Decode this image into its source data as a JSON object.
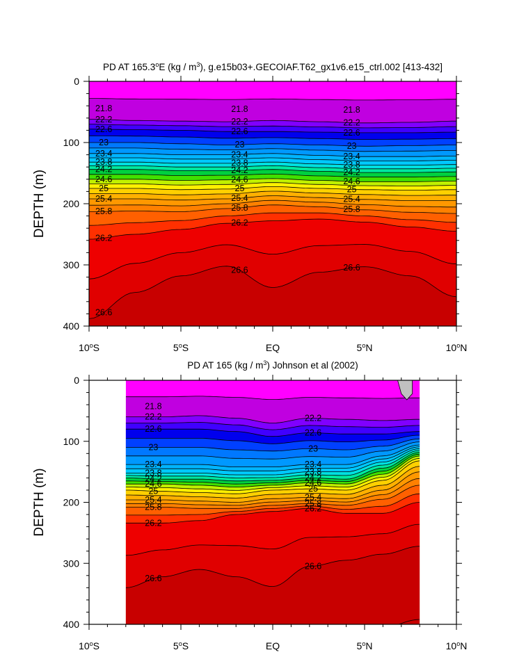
{
  "chart_data": [
    {
      "type": "contour",
      "title_parts": [
        "PD AT 165.3",
        "o",
        "E (kg / m",
        "3",
        "), g.e15b03+.GECOIAF.T62_gx1v6.e15_ctrl.002 [413-432]"
      ],
      "ylabel": "DEPTH (m)",
      "xlabel": "",
      "x_ticklabels": [
        {
          "value": -10,
          "parts": [
            "10",
            "o",
            "S"
          ]
        },
        {
          "value": -5,
          "parts": [
            "5",
            "o",
            "S"
          ]
        },
        {
          "value": 0,
          "parts": [
            "EQ"
          ]
        },
        {
          "value": 5,
          "parts": [
            "5",
            "o",
            "N"
          ]
        },
        {
          "value": 10,
          "parts": [
            "10",
            "o",
            "N"
          ]
        }
      ],
      "y_ticklabels": [
        "0",
        "100",
        "200",
        "300",
        "400"
      ],
      "y_ticks": [
        0,
        100,
        200,
        300,
        400
      ],
      "xlim": [
        -10,
        10
      ],
      "ylim": [
        400,
        0
      ],
      "data_xrange": [
        -10,
        10
      ],
      "contour_interval": 0.2,
      "x": [
        -10,
        -7.5,
        -5,
        -2.5,
        0,
        2.5,
        5,
        7.5,
        10
      ],
      "isopycnal_depths": [
        {
          "level": 22.2,
          "depth": [
            62,
            64,
            65,
            66,
            64,
            66,
            68,
            67,
            65
          ]
        },
        {
          "level": 22.6,
          "depth": [
            78,
            79,
            80,
            82,
            82,
            83,
            84,
            84,
            83
          ]
        },
        {
          "level": 23.0,
          "depth": [
            100,
            100,
            102,
            104,
            102,
            104,
            106,
            105,
            104
          ]
        },
        {
          "level": 23.4,
          "depth": [
            118,
            118,
            120,
            120,
            118,
            121,
            123,
            123,
            122
          ]
        },
        {
          "level": 23.8,
          "depth": [
            132,
            132,
            134,
            134,
            132,
            135,
            137,
            137,
            136
          ]
        },
        {
          "level": 24.2,
          "depth": [
            144,
            144,
            146,
            146,
            144,
            147,
            149,
            149,
            148
          ]
        },
        {
          "level": 24.6,
          "depth": [
            160,
            160,
            162,
            161,
            159,
            162,
            164,
            164,
            163
          ]
        },
        {
          "level": 25.0,
          "depth": [
            175,
            175,
            177,
            176,
            172,
            175,
            177,
            178,
            177
          ]
        },
        {
          "level": 25.4,
          "depth": [
            192,
            192,
            194,
            192,
            187,
            190,
            193,
            195,
            195
          ]
        },
        {
          "level": 25.8,
          "depth": [
            213,
            212,
            213,
            208,
            202,
            205,
            210,
            214,
            216
          ]
        },
        {
          "level": 26.2,
          "depth": [
            258,
            250,
            242,
            232,
            228,
            225,
            230,
            238,
            245
          ]
        },
        {
          "level": 26.6,
          "depth": [
            388,
            345,
            318,
            302,
            337,
            312,
            303,
            318,
            352
          ]
        }
      ],
      "contour_labels": [
        "21.8",
        "21.8",
        "21.8",
        "22.2",
        "22.2",
        "22.2",
        "22.6",
        "22.6",
        "22.6",
        "23",
        "23",
        "23",
        "23.4",
        "23.4",
        "23.4",
        "23.8",
        "23.8",
        "23.8",
        "24.2",
        "24.2",
        "24.2",
        "24.6",
        "24.6",
        "24.6",
        "25",
        "25",
        "25",
        "25.4",
        "25.4",
        "25.4",
        "25.8",
        "25.8",
        "25.8",
        "26.2",
        "26.2",
        "26.6",
        "26.6",
        "26.6"
      ]
    },
    {
      "type": "contour",
      "title_parts": [
        "PD AT 165 (kg / m",
        "3",
        ") Johnson et al (2002)"
      ],
      "ylabel": "DEPTH (m)",
      "xlabel": "",
      "x_ticklabels": [
        {
          "value": -10,
          "parts": [
            "10",
            "o",
            "S"
          ]
        },
        {
          "value": -5,
          "parts": [
            "5",
            "o",
            "S"
          ]
        },
        {
          "value": 0,
          "parts": [
            "EQ"
          ]
        },
        {
          "value": 5,
          "parts": [
            "5",
            "o",
            "N"
          ]
        },
        {
          "value": 10,
          "parts": [
            "10",
            "o",
            "N"
          ]
        }
      ],
      "y_ticklabels": [
        "0",
        "100",
        "200",
        "300",
        "400"
      ],
      "y_ticks": [
        0,
        100,
        200,
        300,
        400
      ],
      "xlim": [
        -10,
        10
      ],
      "ylim": [
        400,
        0
      ],
      "data_xrange": [
        -8,
        8
      ],
      "contour_interval": 0.2,
      "x": [
        -8,
        -6,
        -4,
        -2,
        0,
        2,
        4,
        6,
        8
      ],
      "isopycnal_depths": [
        {
          "level": 22.2,
          "depth": [
            60,
            60,
            58,
            62,
            70,
            62,
            64,
            66,
            64
          ]
        },
        {
          "level": 22.6,
          "depth": [
            80,
            80,
            80,
            84,
            92,
            86,
            88,
            88,
            84
          ]
        },
        {
          "level": 23.0,
          "depth": [
            110,
            110,
            110,
            114,
            116,
            112,
            114,
            108,
            96
          ]
        },
        {
          "level": 23.4,
          "depth": [
            138,
            138,
            138,
            142,
            142,
            138,
            138,
            124,
            106
          ]
        },
        {
          "level": 23.8,
          "depth": [
            152,
            152,
            152,
            155,
            155,
            150,
            150,
            134,
            112
          ]
        },
        {
          "level": 24.2,
          "depth": [
            160,
            162,
            162,
            165,
            164,
            160,
            162,
            144,
            118
          ]
        },
        {
          "level": 24.6,
          "depth": [
            170,
            170,
            172,
            175,
            172,
            168,
            170,
            154,
            124
          ]
        },
        {
          "level": 25.0,
          "depth": [
            180,
            182,
            184,
            186,
            180,
            178,
            180,
            164,
            132
          ]
        },
        {
          "level": 25.4,
          "depth": [
            196,
            196,
            198,
            200,
            194,
            192,
            194,
            180,
            150
          ]
        },
        {
          "level": 25.8,
          "depth": [
            208,
            208,
            210,
            210,
            205,
            202,
            205,
            195,
            172
          ]
        },
        {
          "level": 26.2,
          "depth": [
            234,
            234,
            230,
            220,
            215,
            210,
            218,
            218,
            200
          ]
        },
        {
          "level": 26.6,
          "depth": [
            340,
            322,
            310,
            322,
            338,
            305,
            295,
            285,
            272
          ]
        }
      ],
      "contour_labels": [
        "21.8",
        "22.2",
        "22.2",
        "22.6",
        "22.6",
        "23",
        "23",
        "23.4",
        "23.4",
        "23.8",
        "23.8",
        "24.2",
        "24.2",
        "24.6",
        "24.6",
        "25",
        "25",
        "25.4",
        "25.4",
        "25.8",
        "25.8",
        "26.2",
        "26.2",
        "26.6",
        "26.6"
      ]
    }
  ],
  "colors": {
    "surface_magenta": "#ff00ff",
    "purple": "#c000e0",
    "blue": "#0000ee",
    "cyan": "#00c8ff",
    "green": "#00c000",
    "yellow": "#fff000",
    "orange": "#ff8000",
    "red": "#ee0000",
    "deep_red": "#c80000",
    "land_mask": "#c0c0c0"
  }
}
